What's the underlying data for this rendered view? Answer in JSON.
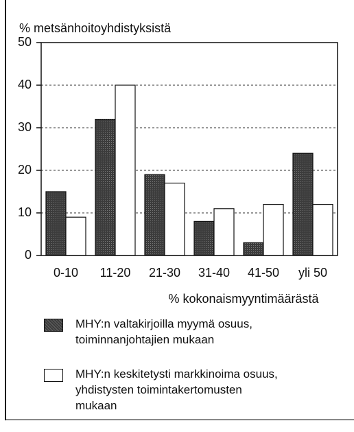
{
  "chart_data": {
    "type": "bar",
    "title": "% metsänhoitoyhdistyksistä",
    "x_label": "% kokonaismyyntimäärästä",
    "categories": [
      "0-10",
      "11-20",
      "21-30",
      "31-40",
      "41-50",
      "yli 50"
    ],
    "series": [
      {
        "name": "MHY:n valtakirjoilla myymä osuus,\ntoiminnanjohtajien mukaan",
        "color": "#3c3c3c",
        "values": [
          15,
          32,
          19,
          8,
          3,
          24
        ]
      },
      {
        "name": "MHY:n keskitetysti markkinoima osuus,\nyhdistysten toimintakertomusten\nmukaan",
        "color": "#ffffff",
        "values": [
          9,
          40,
          17,
          11,
          12,
          12
        ]
      }
    ],
    "ylim": [
      0,
      50
    ],
    "yticks": [
      0,
      10,
      20,
      30,
      40,
      50
    ],
    "grid": true
  }
}
